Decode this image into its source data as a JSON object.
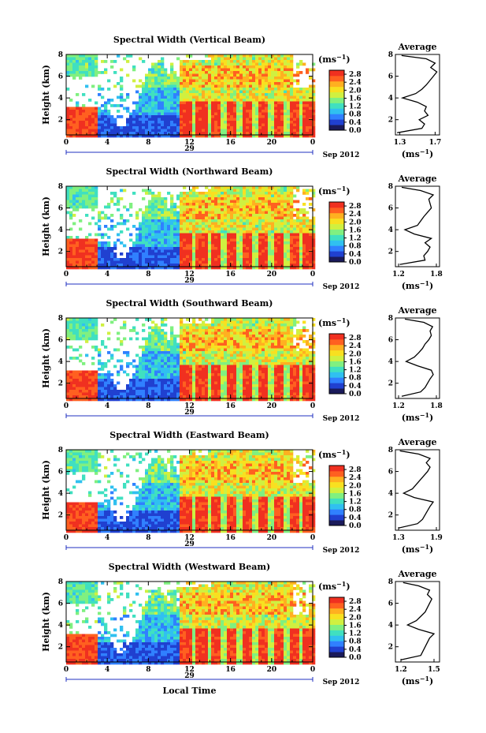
{
  "figure": {
    "xlabel": "Local Time",
    "date_label": "Sep 2012",
    "day_label": "29",
    "ylabel": "Height (km)",
    "colorbar_unit": "(ms",
    "colorbar_unit_exp": "−1",
    "average_title": "Average",
    "average_xlabel": "(ms",
    "average_xlabel_exp": "−1"
  },
  "colors": {
    "colormap": [
      "#1a1a5a",
      "#2040d0",
      "#3080ff",
      "#30c0f0",
      "#40e0c0",
      "#80f080",
      "#d0f040",
      "#f8e020",
      "#ffb020",
      "#ff6020",
      "#f03020"
    ]
  },
  "chart_data": [
    {
      "type": "heatmap",
      "title": "Spectral Width (Vertical Beam)",
      "x_ticks": [
        "0",
        "4",
        "8",
        "12",
        "16",
        "20",
        "0"
      ],
      "y_ticks": [
        "2",
        "4",
        "6",
        "8"
      ],
      "xlim": [
        0,
        24
      ],
      "ylim": [
        0.6,
        8.0
      ],
      "colorbar": {
        "ticks": [
          "0.0",
          "0.4",
          "0.8",
          "1.2",
          "1.6",
          "2.0",
          "2.4",
          "2.8"
        ],
        "range": [
          0.0,
          3.0
        ]
      },
      "average_profile": {
        "title": "Average",
        "x_ticks": [
          "1.3",
          "1.7"
        ],
        "xlim": [
          1.25,
          1.75
        ],
        "y_ticks": [
          "2",
          "4",
          "6",
          "8"
        ],
        "ylim": [
          0.6,
          8.0
        ],
        "height": [
          0.8,
          1.2,
          1.6,
          2.0,
          2.4,
          2.8,
          3.2,
          3.6,
          4.0,
          4.4,
          4.8,
          5.2,
          5.6,
          6.0,
          6.4,
          6.8,
          7.2,
          7.6,
          7.9
        ],
        "value": [
          1.27,
          1.55,
          1.58,
          1.52,
          1.62,
          1.58,
          1.6,
          1.5,
          1.33,
          1.48,
          1.55,
          1.6,
          1.64,
          1.68,
          1.72,
          1.65,
          1.7,
          1.6,
          1.32
        ]
      }
    },
    {
      "type": "heatmap",
      "title": "Spectral Width (Northward Beam)",
      "x_ticks": [
        "0",
        "4",
        "8",
        "12",
        "16",
        "20",
        "0"
      ],
      "y_ticks": [
        "2",
        "4",
        "6",
        "8"
      ],
      "xlim": [
        0,
        24
      ],
      "ylim": [
        0.6,
        8.0
      ],
      "colorbar": {
        "ticks": [
          "0.0",
          "0.4",
          "0.8",
          "1.2",
          "1.6",
          "2.0",
          "2.4",
          "2.8"
        ],
        "range": [
          0.0,
          3.0
        ]
      },
      "average_profile": {
        "title": "Average",
        "x_ticks": [
          "1.2",
          "1.8"
        ],
        "xlim": [
          1.15,
          1.85
        ],
        "y_ticks": [
          "2",
          "4",
          "6",
          "8"
        ],
        "ylim": [
          0.6,
          8.0
        ],
        "height": [
          0.8,
          1.2,
          1.6,
          2.0,
          2.4,
          2.8,
          3.2,
          3.6,
          4.0,
          4.4,
          4.8,
          5.2,
          5.6,
          6.0,
          6.4,
          6.8,
          7.2,
          7.6,
          7.9
        ],
        "value": [
          1.22,
          1.62,
          1.6,
          1.66,
          1.7,
          1.62,
          1.72,
          1.45,
          1.3,
          1.5,
          1.55,
          1.6,
          1.66,
          1.72,
          1.7,
          1.68,
          1.75,
          1.55,
          1.25
        ]
      }
    },
    {
      "type": "heatmap",
      "title": "Spectral Width (Southward Beam)",
      "x_ticks": [
        "0",
        "4",
        "8",
        "12",
        "16",
        "20",
        "0"
      ],
      "y_ticks": [
        "2",
        "4",
        "6",
        "8"
      ],
      "xlim": [
        0,
        24
      ],
      "ylim": [
        0.6,
        8.0
      ],
      "colorbar": {
        "ticks": [
          "0.0",
          "0.4",
          "0.8",
          "1.2",
          "1.6",
          "2.0",
          "2.4",
          "2.8"
        ],
        "range": [
          0.0,
          3.0
        ]
      },
      "average_profile": {
        "title": "Average",
        "x_ticks": [
          "1.2",
          "1.8"
        ],
        "xlim": [
          1.15,
          1.85
        ],
        "y_ticks": [
          "2",
          "4",
          "6",
          "8"
        ],
        "ylim": [
          0.6,
          8.0
        ],
        "height": [
          0.8,
          1.2,
          1.6,
          2.0,
          2.4,
          2.8,
          3.2,
          3.6,
          4.0,
          4.4,
          4.8,
          5.2,
          5.6,
          6.0,
          6.4,
          6.8,
          7.2,
          7.6,
          7.9
        ],
        "value": [
          1.25,
          1.55,
          1.62,
          1.66,
          1.7,
          1.75,
          1.72,
          1.5,
          1.32,
          1.45,
          1.52,
          1.58,
          1.62,
          1.68,
          1.72,
          1.7,
          1.74,
          1.6,
          1.3
        ]
      }
    },
    {
      "type": "heatmap",
      "title": "Spectral Width (Eastward Beam)",
      "x_ticks": [
        "0",
        "4",
        "8",
        "12",
        "16",
        "20",
        "0"
      ],
      "y_ticks": [
        "2",
        "4",
        "6",
        "8"
      ],
      "xlim": [
        0,
        24
      ],
      "ylim": [
        0.6,
        8.0
      ],
      "colorbar": {
        "ticks": [
          "0.0",
          "0.4",
          "0.8",
          "1.2",
          "1.6",
          "2.0",
          "2.4",
          "2.8"
        ],
        "range": [
          0.0,
          3.0
        ]
      },
      "average_profile": {
        "title": "Average",
        "x_ticks": [
          "1.3",
          "1.9"
        ],
        "xlim": [
          1.25,
          1.95
        ],
        "y_ticks": [
          "2",
          "4",
          "6",
          "8"
        ],
        "ylim": [
          0.6,
          8.0
        ],
        "height": [
          0.8,
          1.2,
          1.6,
          2.0,
          2.4,
          2.8,
          3.2,
          3.6,
          4.0,
          4.4,
          4.8,
          5.2,
          5.6,
          6.0,
          6.4,
          6.8,
          7.2,
          7.6,
          7.9
        ],
        "value": [
          1.3,
          1.6,
          1.68,
          1.72,
          1.76,
          1.8,
          1.85,
          1.55,
          1.38,
          1.52,
          1.58,
          1.64,
          1.7,
          1.76,
          1.8,
          1.74,
          1.8,
          1.62,
          1.32
        ]
      }
    },
    {
      "type": "heatmap",
      "title": "Spectral Width (Westward Beam)",
      "x_ticks": [
        "0",
        "4",
        "8",
        "12",
        "16",
        "20",
        "0"
      ],
      "y_ticks": [
        "2",
        "4",
        "6",
        "8"
      ],
      "xlim": [
        0,
        24
      ],
      "ylim": [
        0.6,
        8.0
      ],
      "colorbar": {
        "ticks": [
          "0.0",
          "0.4",
          "0.8",
          "1.2",
          "1.6",
          "2.0",
          "2.4",
          "2.8"
        ],
        "range": [
          0.0,
          3.0
        ]
      },
      "average_profile": {
        "title": "Average",
        "x_ticks": [
          "1.2",
          "1.5"
        ],
        "xlim": [
          1.15,
          1.55
        ],
        "y_ticks": [
          "2",
          "4",
          "6",
          "8"
        ],
        "ylim": [
          0.6,
          8.0
        ],
        "height": [
          0.8,
          1.2,
          1.6,
          2.0,
          2.4,
          2.8,
          3.2,
          3.6,
          4.0,
          4.4,
          4.8,
          5.2,
          5.6,
          6.0,
          6.4,
          6.8,
          7.2,
          7.6,
          7.9
        ],
        "value": [
          1.2,
          1.38,
          1.4,
          1.42,
          1.44,
          1.46,
          1.5,
          1.36,
          1.26,
          1.34,
          1.38,
          1.42,
          1.44,
          1.46,
          1.48,
          1.44,
          1.46,
          1.36,
          1.22
        ]
      }
    }
  ]
}
